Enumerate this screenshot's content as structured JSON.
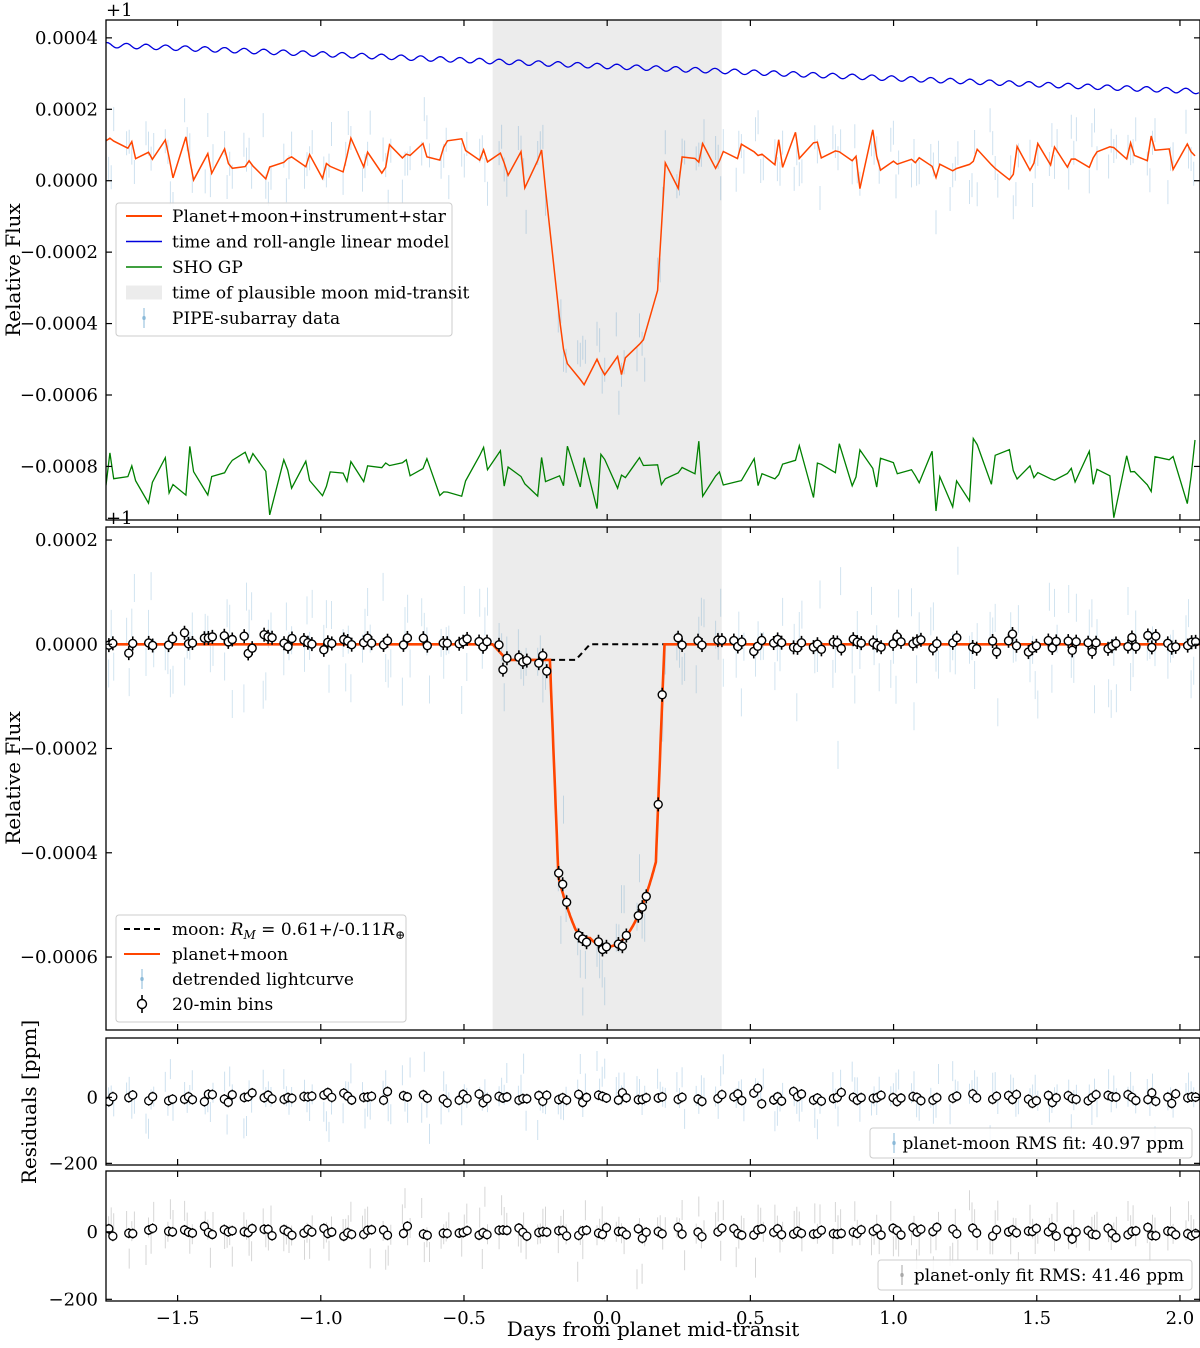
{
  "chart_data": [
    {
      "type": "line",
      "title": "",
      "offset_text": "+1",
      "xlabel": "",
      "ylabel": "Relative Flux",
      "xlim": [
        -1.75,
        2.07
      ],
      "ylim": [
        -0.00095,
        0.00045
      ],
      "yticks": [
        0.0004,
        0.0002,
        0.0,
        -0.0002,
        -0.0004,
        -0.0006,
        -0.0008
      ],
      "ytick_labels": [
        "0.0004",
        "0.0002",
        "0.0000",
        "−0.0002",
        "−0.0004",
        "−0.0006",
        "−0.0008"
      ],
      "shaded_region": {
        "x": [
          -0.4,
          0.4
        ],
        "label": "time of plausible moon mid-transit"
      },
      "series": [
        {
          "name": "Planet+moon+instrument+star",
          "color": "#ff4500",
          "description": "full model; ~0.00005 out of transit, dips to ~-0.00055 at mid-transit"
        },
        {
          "name": "time and roll-angle linear model",
          "color": "#0000dd",
          "description": "oscillating trend decreasing from ~0.00038 to ~0.00025"
        },
        {
          "name": "SHO GP",
          "color": "#008000",
          "description": "stochastic noise around -0.00082"
        },
        {
          "name": "PIPE-subarray data",
          "color": "#1f77b4",
          "description": "scattered points with error bars"
        }
      ],
      "legend": {
        "placement": "left",
        "entries": [
          {
            "label": "Planet+moon+instrument+star",
            "style": "line",
            "color": "#ff4500"
          },
          {
            "label": "time and roll-angle linear model",
            "style": "line",
            "color": "#0000dd"
          },
          {
            "label": "SHO GP",
            "style": "line",
            "color": "#008000"
          },
          {
            "label": "time of plausible moon mid-transit",
            "style": "patch",
            "color": "#ececec"
          },
          {
            "label": "PIPE-subarray data",
            "style": "errorbar",
            "color": "#1f77b4"
          }
        ]
      }
    },
    {
      "type": "line",
      "title": "",
      "offset_text": "+1",
      "xlabel": "",
      "ylabel": "Relative Flux",
      "xlim": [
        -1.75,
        2.07
      ],
      "ylim": [
        -0.00074,
        0.000225
      ],
      "yticks": [
        0.0002,
        0.0,
        -0.0002,
        -0.0004,
        -0.0006
      ],
      "ytick_labels": [
        "0.0002",
        "0.0000",
        "−0.0002",
        "−0.0004",
        "−0.0006"
      ],
      "shaded_region": {
        "x": [
          -0.4,
          0.4
        ]
      },
      "transit": {
        "ingress": [
          -0.2,
          -0.17
        ],
        "egress": [
          0.17,
          0.2
        ],
        "depth": -0.00058
      },
      "moon_transit": {
        "start": -0.4,
        "end": -0.06,
        "depth": -3e-05
      },
      "legend": {
        "placement": "bottom-left",
        "entries": [
          {
            "label": "moon: ",
            "math": "R",
            "math_sub": "M",
            "suffix": " = 0.61+/-0.11",
            "math2": "R",
            "math2_sub": "⊕",
            "style": "dashed",
            "color": "#000000"
          },
          {
            "label": "planet+moon",
            "style": "line",
            "color": "#ff4500"
          },
          {
            "label": "detrended lightcurve",
            "style": "errorbar",
            "color": "#1f77b4"
          },
          {
            "label": "20-min bins",
            "style": "bin",
            "color": "#000000"
          }
        ]
      }
    },
    {
      "type": "scatter",
      "title": "",
      "xlabel": "",
      "ylabel": "Residuals [ppm]",
      "xlim": [
        -1.75,
        2.07
      ],
      "ylim": [
        -205,
        180
      ],
      "yticks": [
        0,
        -200
      ],
      "ytick_labels": [
        "0",
        "−200"
      ],
      "legend": {
        "placement": "bottom-right",
        "entries": [
          {
            "label": "planet-moon RMS fit: 40.97 ppm",
            "style": "errorbar",
            "color": "#1f77b4"
          }
        ]
      }
    },
    {
      "type": "scatter",
      "title": "",
      "xlabel": "Days from planet mid-transit",
      "ylabel": "",
      "xlim": [
        -1.75,
        2.07
      ],
      "ylim": [
        -205,
        180
      ],
      "yticks": [
        0,
        -200
      ],
      "ytick_labels": [
        "0",
        "−200"
      ],
      "xticks": [
        -1.5,
        -1.0,
        -0.5,
        0.0,
        0.5,
        1.0,
        1.5,
        2.0
      ],
      "xtick_labels": [
        "−1.5",
        "−1.0",
        "−0.5",
        "0.0",
        "0.5",
        "1.0",
        "1.5",
        "2.0"
      ],
      "legend": {
        "placement": "bottom-right",
        "entries": [
          {
            "label": "planet-only fit RMS: 41.46 ppm",
            "style": "errorbar",
            "color": "#555555"
          }
        ]
      }
    }
  ]
}
